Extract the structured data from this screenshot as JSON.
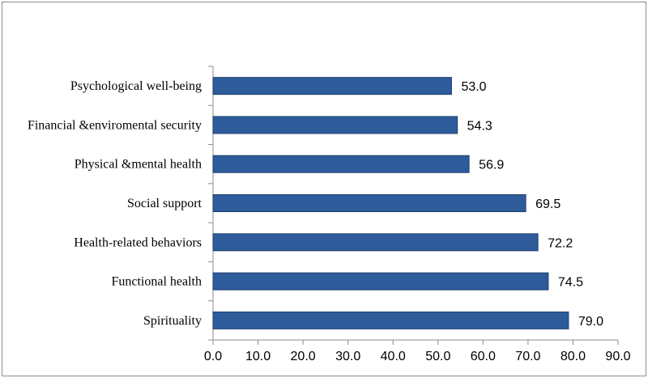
{
  "chart_data": {
    "type": "bar",
    "orientation": "horizontal",
    "categories": [
      "Psychological well-being",
      "Financial &enviromental security",
      "Physical &mental health",
      "Social support",
      "Health-related behaviors",
      "Functional health",
      "Spirituality"
    ],
    "values": [
      53.0,
      54.3,
      56.9,
      69.5,
      72.2,
      74.5,
      79.0
    ],
    "value_labels": [
      "53.0",
      "54.3",
      "56.9",
      "69.5",
      "72.2",
      "74.5",
      "79.0"
    ],
    "x_ticks": [
      "0.0",
      "10.0",
      "20.0",
      "30.0",
      "40.0",
      "50.0",
      "60.0",
      "70.0",
      "80.0",
      "90.0"
    ],
    "xlim": [
      0,
      90
    ],
    "title": "",
    "xlabel": "",
    "ylabel": "",
    "grid": false,
    "legend": "none",
    "bar_color": "#2e5b9a",
    "bar_border_color": "#1f3f6e"
  }
}
